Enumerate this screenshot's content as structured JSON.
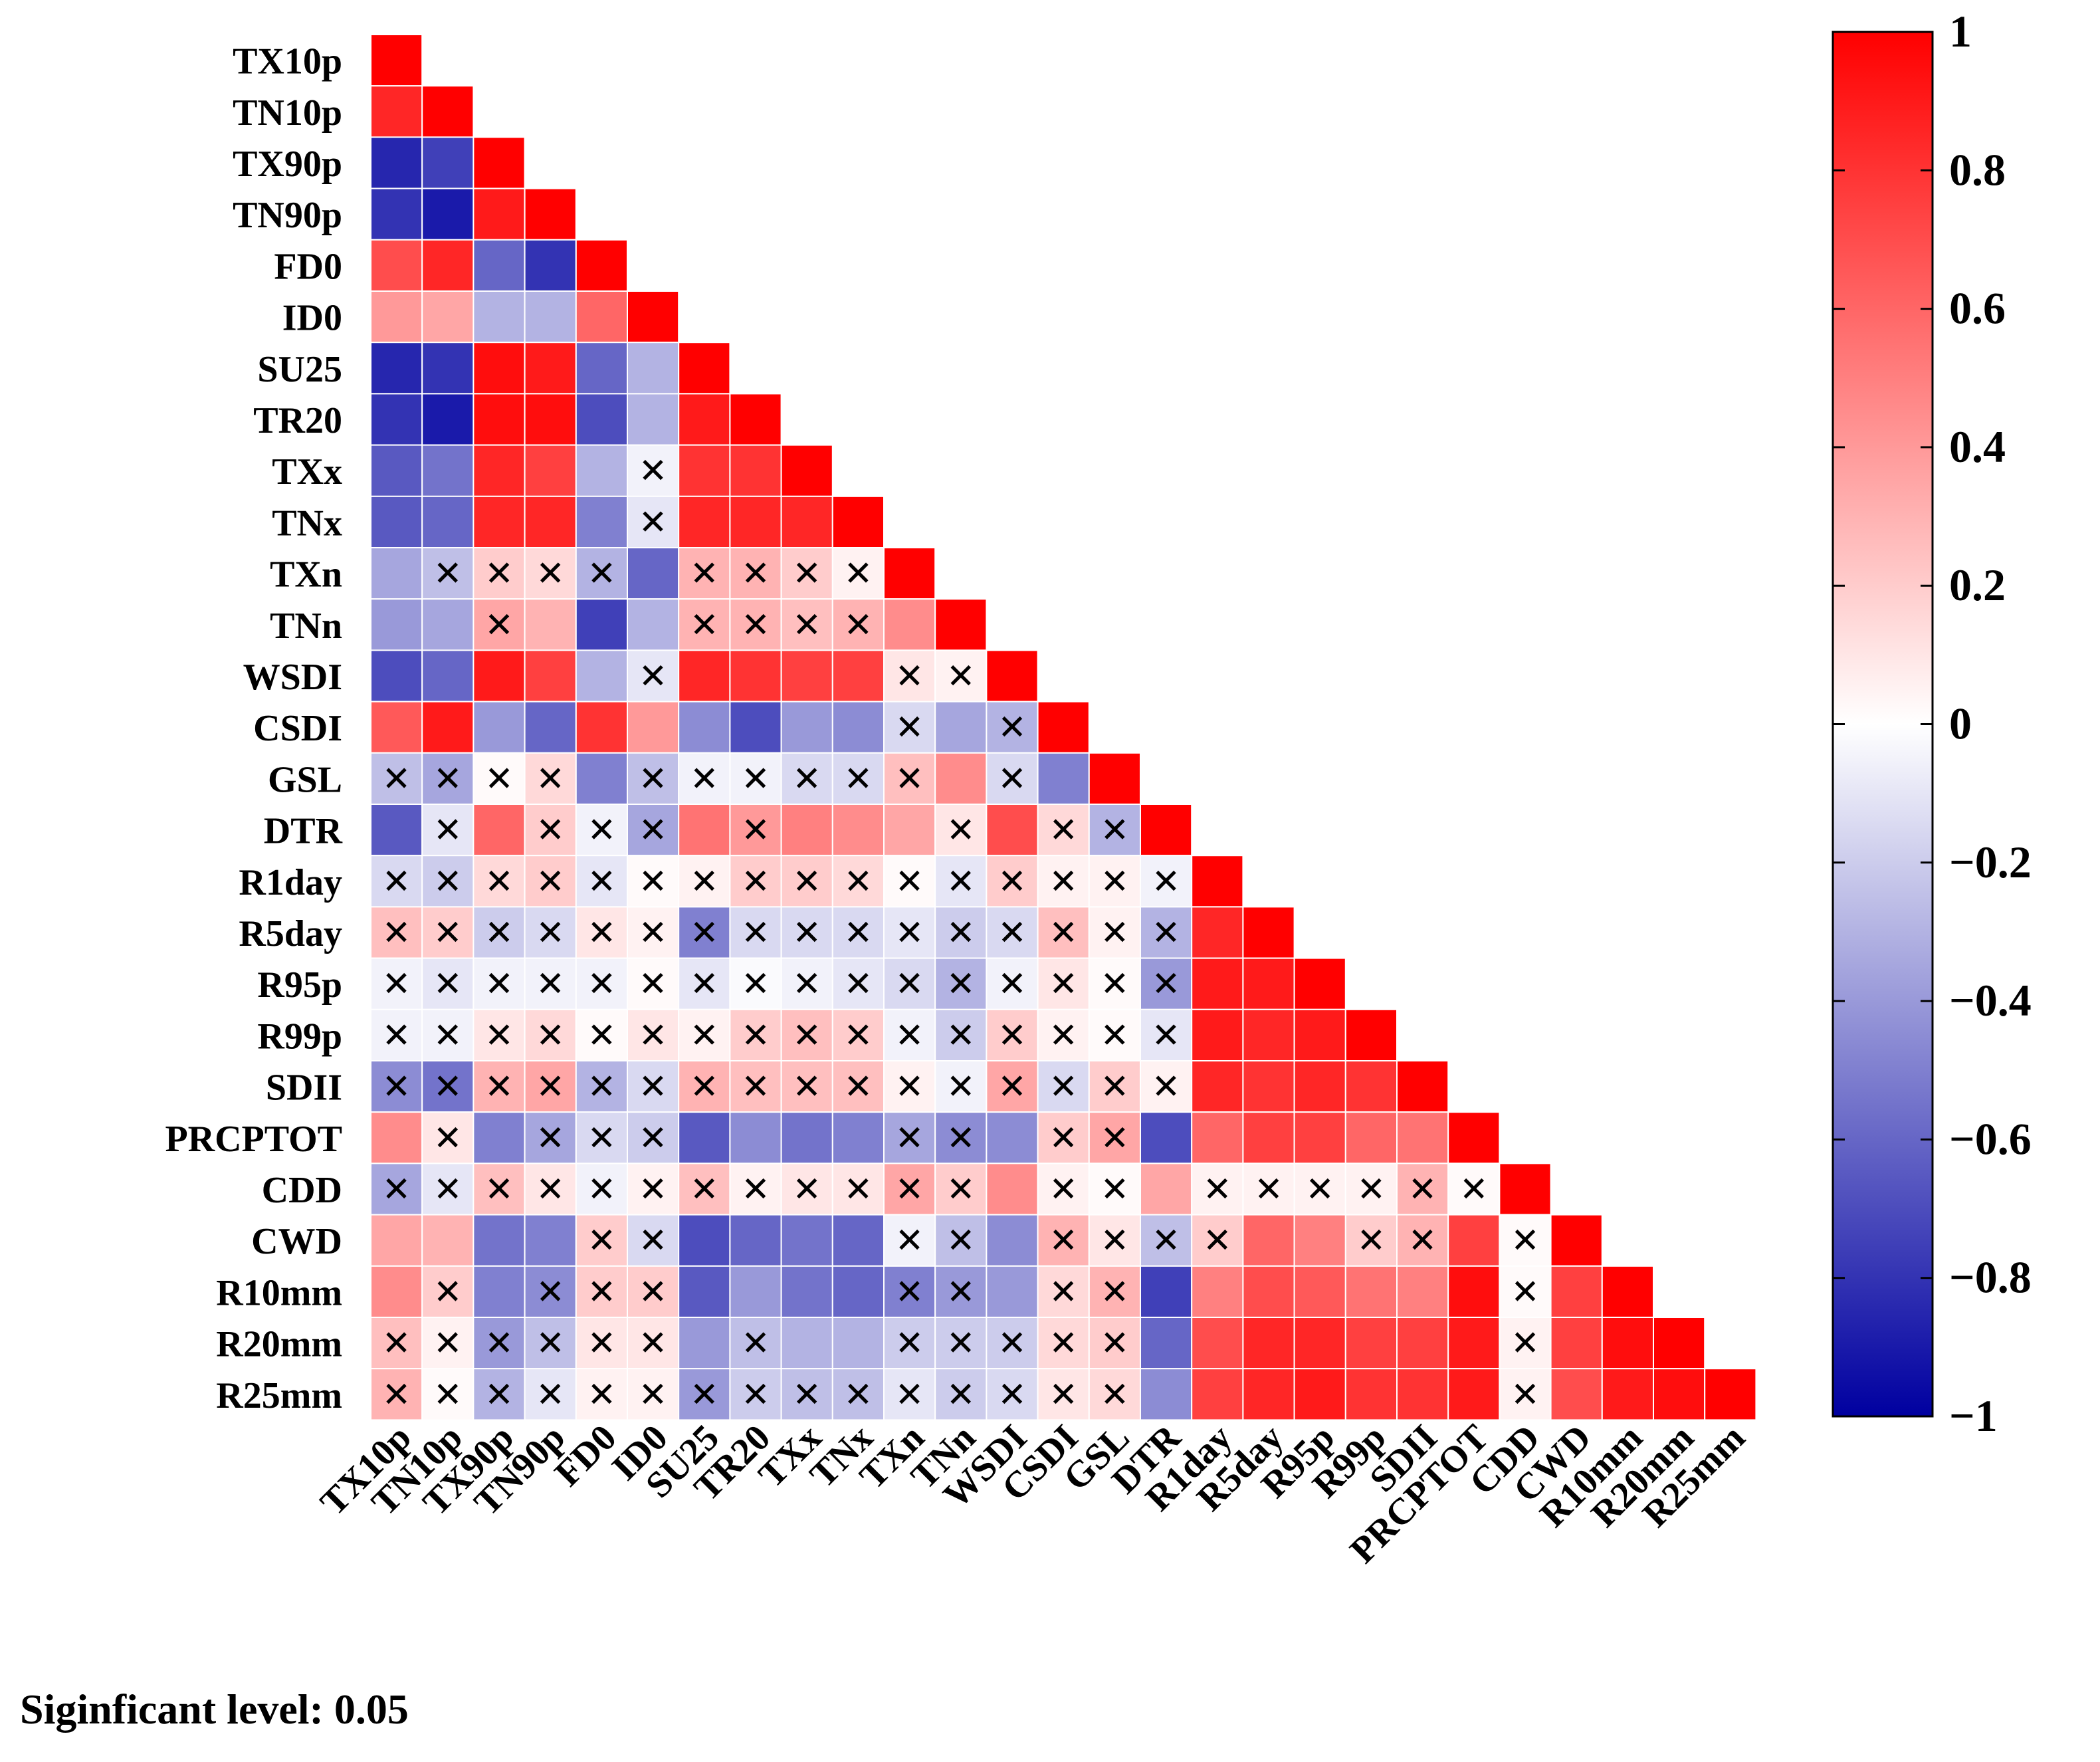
{
  "chart_data": {
    "type": "heatmap",
    "title": "",
    "xlabel": "",
    "ylabel": "",
    "variables": [
      "TX10p",
      "TN10p",
      "TX90p",
      "TN90p",
      "FD0",
      "ID0",
      "SU25",
      "TR20",
      "TXx",
      "TNx",
      "TXn",
      "TNn",
      "WSDI",
      "CSDI",
      "GSL",
      "DTR",
      "R1day",
      "R5day",
      "R95p",
      "R99p",
      "SDII",
      "PRCPTOT",
      "CDD",
      "CWD",
      "R10mm",
      "R20mm",
      "R25mm"
    ],
    "value_range": [
      -1,
      1
    ],
    "colorbar": {
      "ticks": [
        1,
        0.8,
        0.6,
        0.4,
        0.2,
        0,
        -0.2,
        -0.4,
        -0.6,
        -0.8,
        -1
      ],
      "tick_labels": [
        "1",
        "0.8",
        "0.6",
        "0.4",
        "0.2",
        "0",
        "−0.2",
        "−0.4",
        "−0.6",
        "−0.8",
        "−1"
      ],
      "colors": {
        "low": "#0000a0",
        "mid": "#ffffff",
        "high": "#ff0000"
      }
    },
    "insignificant_marker": "✕",
    "lower_triangle": [
      [
        1
      ],
      [
        0.85,
        1
      ],
      [
        -0.85,
        -0.75,
        1
      ],
      [
        -0.8,
        -0.9,
        0.9,
        1
      ],
      [
        0.7,
        0.85,
        -0.6,
        -0.8,
        1
      ],
      [
        0.4,
        0.35,
        -0.3,
        -0.3,
        0.6,
        1
      ],
      [
        -0.85,
        -0.8,
        0.95,
        0.9,
        -0.6,
        -0.3,
        1
      ],
      [
        -0.8,
        -0.9,
        0.95,
        0.95,
        -0.7,
        -0.3,
        0.9,
        1
      ],
      [
        -0.65,
        -0.55,
        0.85,
        0.75,
        -0.3,
        -0.05,
        0.8,
        0.8,
        1
      ],
      [
        -0.65,
        -0.6,
        0.85,
        0.85,
        -0.5,
        -0.1,
        0.85,
        0.85,
        0.85,
        1
      ],
      [
        -0.35,
        -0.25,
        0.2,
        0.15,
        -0.3,
        -0.6,
        0.3,
        0.3,
        0.2,
        0.05,
        1
      ],
      [
        -0.4,
        -0.35,
        0.35,
        0.3,
        -0.75,
        -0.3,
        0.3,
        0.3,
        0.25,
        0.3,
        0.45,
        1
      ],
      [
        -0.7,
        -0.6,
        0.9,
        0.75,
        -0.3,
        -0.1,
        0.85,
        0.8,
        0.75,
        0.75,
        0.1,
        0.05,
        1
      ],
      [
        0.65,
        0.9,
        -0.4,
        -0.6,
        0.8,
        0.4,
        -0.45,
        -0.7,
        -0.4,
        -0.45,
        -0.15,
        -0.35,
        -0.3,
        1
      ],
      [
        -0.25,
        -0.35,
        0.02,
        0.15,
        -0.5,
        -0.25,
        -0.05,
        -0.05,
        -0.15,
        -0.15,
        0.25,
        0.45,
        -0.15,
        -0.5,
        1
      ],
      [
        -0.65,
        -0.1,
        0.6,
        0.2,
        -0.05,
        -0.35,
        0.55,
        0.4,
        0.5,
        0.45,
        0.35,
        0.1,
        0.7,
        0.15,
        -0.3,
        1
      ],
      [
        -0.15,
        -0.2,
        0.15,
        0.2,
        -0.1,
        0.02,
        0.05,
        0.2,
        0.2,
        0.15,
        0.02,
        -0.1,
        0.2,
        0.05,
        0.05,
        -0.05,
        1
      ],
      [
        0.25,
        0.2,
        -0.2,
        -0.15,
        0.1,
        0.05,
        -0.5,
        -0.15,
        -0.15,
        -0.15,
        -0.1,
        -0.2,
        -0.15,
        0.25,
        0.05,
        -0.3,
        0.85,
        1
      ],
      [
        -0.05,
        -0.1,
        -0.05,
        -0.05,
        -0.05,
        0.02,
        -0.1,
        -0.02,
        -0.05,
        -0.1,
        -0.15,
        -0.3,
        -0.05,
        0.1,
        0.02,
        -0.4,
        0.9,
        0.9,
        1
      ],
      [
        -0.05,
        -0.05,
        0.1,
        0.15,
        0.02,
        0.1,
        0.05,
        0.2,
        0.25,
        0.2,
        -0.05,
        -0.2,
        0.2,
        0.05,
        0.02,
        -0.1,
        0.9,
        0.85,
        0.9,
        1
      ],
      [
        -0.45,
        -0.55,
        0.3,
        0.35,
        -0.3,
        -0.15,
        0.3,
        0.25,
        0.25,
        0.25,
        0.05,
        -0.05,
        0.35,
        -0.15,
        0.2,
        0.05,
        0.85,
        0.8,
        0.85,
        0.8,
        1
      ],
      [
        0.45,
        0.1,
        -0.5,
        -0.35,
        -0.15,
        -0.2,
        -0.65,
        -0.45,
        -0.55,
        -0.5,
        -0.35,
        -0.45,
        -0.45,
        0.2,
        0.35,
        -0.7,
        0.6,
        0.75,
        0.75,
        0.6,
        0.55,
        1
      ],
      [
        -0.35,
        -0.1,
        0.25,
        0.1,
        -0.05,
        0.05,
        0.25,
        0.05,
        0.1,
        0.1,
        0.35,
        0.2,
        0.45,
        0.05,
        0.02,
        0.35,
        0.05,
        0.05,
        0.05,
        0.05,
        0.3,
        0.02,
        1
      ],
      [
        0.35,
        0.3,
        -0.55,
        -0.5,
        0.2,
        -0.15,
        -0.7,
        -0.6,
        -0.55,
        -0.6,
        -0.05,
        -0.25,
        -0.45,
        0.3,
        0.1,
        -0.25,
        0.2,
        0.6,
        0.5,
        0.2,
        0.3,
        0.75,
        0.02,
        1
      ],
      [
        0.45,
        0.2,
        -0.5,
        -0.45,
        0.2,
        0.2,
        -0.65,
        -0.4,
        -0.55,
        -0.6,
        -0.5,
        -0.4,
        -0.4,
        0.15,
        0.3,
        -0.75,
        0.5,
        0.7,
        0.65,
        0.55,
        0.5,
        0.95,
        0.02,
        0.75,
        1
      ],
      [
        0.25,
        0.05,
        -0.4,
        -0.25,
        0.1,
        0.1,
        -0.4,
        -0.25,
        -0.3,
        -0.3,
        -0.2,
        -0.2,
        -0.2,
        0.15,
        0.2,
        -0.6,
        0.7,
        0.85,
        0.85,
        0.75,
        0.75,
        0.9,
        0.05,
        0.75,
        0.95,
        1
      ],
      [
        0.3,
        0.02,
        -0.3,
        -0.1,
        0.05,
        0.05,
        -0.4,
        -0.2,
        -0.25,
        -0.25,
        -0.1,
        -0.2,
        -0.15,
        0.1,
        0.15,
        -0.45,
        0.75,
        0.85,
        0.9,
        0.8,
        0.8,
        0.9,
        0.05,
        0.7,
        0.9,
        0.95,
        1
      ]
    ],
    "insignificant_cells": [
      [
        8,
        5
      ],
      [
        9,
        5
      ],
      [
        10,
        1
      ],
      [
        10,
        2
      ],
      [
        10,
        3
      ],
      [
        10,
        4
      ],
      [
        10,
        6
      ],
      [
        10,
        7
      ],
      [
        10,
        8
      ],
      [
        10,
        9
      ],
      [
        11,
        2
      ],
      [
        11,
        6
      ],
      [
        11,
        7
      ],
      [
        11,
        8
      ],
      [
        11,
        9
      ],
      [
        12,
        5
      ],
      [
        12,
        10
      ],
      [
        12,
        11
      ],
      [
        13,
        10
      ],
      [
        13,
        12
      ],
      [
        14,
        0
      ],
      [
        14,
        1
      ],
      [
        14,
        2
      ],
      [
        14,
        3
      ],
      [
        14,
        5
      ],
      [
        14,
        6
      ],
      [
        14,
        7
      ],
      [
        14,
        8
      ],
      [
        14,
        9
      ],
      [
        14,
        10
      ],
      [
        14,
        12
      ],
      [
        15,
        1
      ],
      [
        15,
        3
      ],
      [
        15,
        4
      ],
      [
        15,
        5
      ],
      [
        15,
        7
      ],
      [
        15,
        11
      ],
      [
        15,
        13
      ],
      [
        15,
        14
      ],
      [
        16,
        0
      ],
      [
        16,
        1
      ],
      [
        16,
        2
      ],
      [
        16,
        3
      ],
      [
        16,
        4
      ],
      [
        16,
        5
      ],
      [
        16,
        6
      ],
      [
        16,
        7
      ],
      [
        16,
        8
      ],
      [
        16,
        9
      ],
      [
        16,
        10
      ],
      [
        16,
        11
      ],
      [
        16,
        12
      ],
      [
        16,
        13
      ],
      [
        16,
        14
      ],
      [
        16,
        15
      ],
      [
        17,
        0
      ],
      [
        17,
        1
      ],
      [
        17,
        2
      ],
      [
        17,
        3
      ],
      [
        17,
        4
      ],
      [
        17,
        5
      ],
      [
        17,
        6
      ],
      [
        17,
        7
      ],
      [
        17,
        8
      ],
      [
        17,
        9
      ],
      [
        17,
        10
      ],
      [
        17,
        11
      ],
      [
        17,
        12
      ],
      [
        17,
        13
      ],
      [
        17,
        14
      ],
      [
        17,
        15
      ],
      [
        18,
        0
      ],
      [
        18,
        1
      ],
      [
        18,
        2
      ],
      [
        18,
        3
      ],
      [
        18,
        4
      ],
      [
        18,
        5
      ],
      [
        18,
        6
      ],
      [
        18,
        7
      ],
      [
        18,
        8
      ],
      [
        18,
        9
      ],
      [
        18,
        10
      ],
      [
        18,
        11
      ],
      [
        18,
        12
      ],
      [
        18,
        13
      ],
      [
        18,
        14
      ],
      [
        18,
        15
      ],
      [
        19,
        0
      ],
      [
        19,
        1
      ],
      [
        19,
        2
      ],
      [
        19,
        3
      ],
      [
        19,
        4
      ],
      [
        19,
        5
      ],
      [
        19,
        6
      ],
      [
        19,
        7
      ],
      [
        19,
        8
      ],
      [
        19,
        9
      ],
      [
        19,
        10
      ],
      [
        19,
        11
      ],
      [
        19,
        12
      ],
      [
        19,
        13
      ],
      [
        19,
        14
      ],
      [
        19,
        15
      ],
      [
        20,
        0
      ],
      [
        20,
        1
      ],
      [
        20,
        2
      ],
      [
        20,
        3
      ],
      [
        20,
        4
      ],
      [
        20,
        5
      ],
      [
        20,
        6
      ],
      [
        20,
        7
      ],
      [
        20,
        8
      ],
      [
        20,
        9
      ],
      [
        20,
        10
      ],
      [
        20,
        11
      ],
      [
        20,
        12
      ],
      [
        20,
        13
      ],
      [
        20,
        14
      ],
      [
        20,
        15
      ],
      [
        21,
        1
      ],
      [
        21,
        3
      ],
      [
        21,
        4
      ],
      [
        21,
        5
      ],
      [
        21,
        10
      ],
      [
        21,
        11
      ],
      [
        21,
        13
      ],
      [
        21,
        14
      ],
      [
        22,
        0
      ],
      [
        22,
        1
      ],
      [
        22,
        2
      ],
      [
        22,
        3
      ],
      [
        22,
        4
      ],
      [
        22,
        5
      ],
      [
        22,
        6
      ],
      [
        22,
        7
      ],
      [
        22,
        8
      ],
      [
        22,
        9
      ],
      [
        22,
        10
      ],
      [
        22,
        11
      ],
      [
        22,
        13
      ],
      [
        22,
        14
      ],
      [
        22,
        16
      ],
      [
        22,
        17
      ],
      [
        22,
        18
      ],
      [
        22,
        19
      ],
      [
        22,
        20
      ],
      [
        22,
        21
      ],
      [
        23,
        4
      ],
      [
        23,
        5
      ],
      [
        23,
        10
      ],
      [
        23,
        11
      ],
      [
        23,
        13
      ],
      [
        23,
        14
      ],
      [
        23,
        15
      ],
      [
        23,
        16
      ],
      [
        23,
        19
      ],
      [
        23,
        20
      ],
      [
        23,
        22
      ],
      [
        24,
        1
      ],
      [
        24,
        3
      ],
      [
        24,
        4
      ],
      [
        24,
        5
      ],
      [
        24,
        10
      ],
      [
        24,
        11
      ],
      [
        24,
        13
      ],
      [
        24,
        14
      ],
      [
        24,
        22
      ],
      [
        25,
        0
      ],
      [
        25,
        1
      ],
      [
        25,
        2
      ],
      [
        25,
        3
      ],
      [
        25,
        4
      ],
      [
        25,
        5
      ],
      [
        25,
        7
      ],
      [
        25,
        10
      ],
      [
        25,
        11
      ],
      [
        25,
        12
      ],
      [
        25,
        13
      ],
      [
        25,
        14
      ],
      [
        25,
        22
      ],
      [
        26,
        0
      ],
      [
        26,
        1
      ],
      [
        26,
        2
      ],
      [
        26,
        3
      ],
      [
        26,
        4
      ],
      [
        26,
        5
      ],
      [
        26,
        6
      ],
      [
        26,
        7
      ],
      [
        26,
        8
      ],
      [
        26,
        9
      ],
      [
        26,
        10
      ],
      [
        26,
        11
      ],
      [
        26,
        12
      ],
      [
        26,
        13
      ],
      [
        26,
        14
      ],
      [
        26,
        22
      ]
    ]
  },
  "footer_note": "Siginficant level: 0.05"
}
